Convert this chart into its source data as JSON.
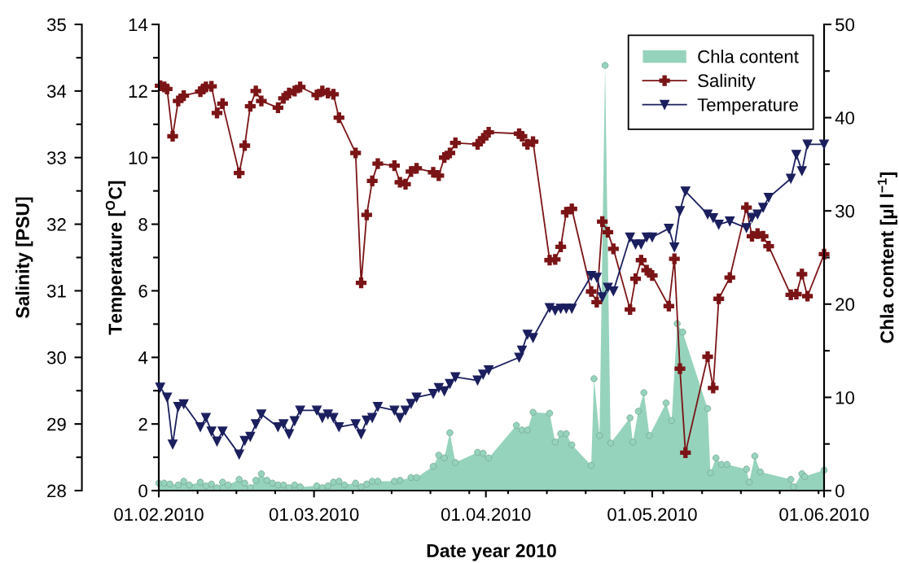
{
  "chart_data": {
    "type": "line",
    "xlabel": "Date year 2010",
    "ylabel": "Temperature [$^{O}$C]",
    "y2label": "Chla content [µl l$^{−1}$]",
    "y3label": "Salinity [PSU]",
    "xlim": [
      "2010-02-01",
      "2010-06-01"
    ],
    "xticks": [
      {
        "value": "2010-02-01",
        "label": "01.02.2010"
      },
      {
        "value": "2010-02-08",
        "label": null
      },
      {
        "value": "2010-02-15",
        "label": null
      },
      {
        "value": "2010-02-22",
        "label": null
      },
      {
        "value": "2010-03-01",
        "label": "01.03.2010"
      },
      {
        "value": "2010-03-08",
        "label": null
      },
      {
        "value": "2010-03-15",
        "label": null
      },
      {
        "value": "2010-03-22",
        "label": null
      },
      {
        "value": "2010-03-29",
        "label": null
      },
      {
        "value": "2010-04-01",
        "label": "01.04.2010"
      },
      {
        "value": "2010-04-05",
        "label": null
      },
      {
        "value": "2010-04-12",
        "label": null
      },
      {
        "value": "2010-04-19",
        "label": null
      },
      {
        "value": "2010-04-26",
        "label": null
      },
      {
        "value": "2010-05-01",
        "label": "01.05.2010"
      },
      {
        "value": "2010-05-03",
        "label": null
      },
      {
        "value": "2010-05-10",
        "label": null
      },
      {
        "value": "2010-05-17",
        "label": null
      },
      {
        "value": "2010-05-24",
        "label": null
      },
      {
        "value": "2010-05-31",
        "label": null
      },
      {
        "value": "2010-06-01",
        "label": "01.06.2010"
      }
    ],
    "ylim": [
      0,
      14
    ],
    "yticks": [
      0,
      {
        "value": 1,
        "label": null
      },
      2,
      {
        "value": 3,
        "label": null
      },
      4,
      {
        "value": 5,
        "label": null
      },
      6,
      {
        "value": 7,
        "label": null
      },
      8,
      {
        "value": 9,
        "label": null
      },
      10,
      {
        "value": 11,
        "label": null
      },
      12,
      {
        "value": 13,
        "label": null
      },
      14
    ],
    "y2lim": [
      0,
      50
    ],
    "y2ticks": [
      0,
      {
        "value": 5,
        "label": null
      },
      10,
      {
        "value": 15,
        "label": null
      },
      20,
      {
        "value": 25,
        "label": null
      },
      30,
      {
        "value": 35,
        "label": null
      },
      40,
      {
        "value": 45,
        "label": null
      },
      50
    ],
    "y3lim": [
      28,
      35
    ],
    "y3ticks": [
      28,
      {
        "value": 28.5,
        "label": null
      },
      29,
      {
        "value": 29.5,
        "label": null
      },
      30,
      {
        "value": 30.5,
        "label": null
      },
      31,
      {
        "value": 31.5,
        "label": null
      },
      32,
      {
        "value": 32.5,
        "label": null
      },
      33,
      {
        "value": 33.5,
        "label": null
      },
      34,
      {
        "value": 34.5,
        "label": null
      },
      35
    ],
    "legend": "top right",
    "series": [
      {
        "name": "Chla content",
        "type": "area",
        "axis": "y2",
        "color": "#96d3bc",
        "marker": "circle",
        "x": [
          "2010-02-01",
          "2010-02-02",
          "2010-02-03",
          "2010-02-04T12:00",
          "2010-02-05T12:00",
          "2010-02-06T12:00",
          "2010-02-08T12:00",
          "2010-02-09T12:00",
          "2010-02-10T12:00",
          "2010-02-11T12:00",
          "2010-02-12T12:00",
          "2010-02-13T12:00",
          "2010-02-15T12:00",
          "2010-02-16T12:00",
          "2010-02-17T12:00",
          "2010-02-18T12:00",
          "2010-02-19T12:00",
          "2010-02-20T12:00",
          "2010-02-21T12:00",
          "2010-02-22T12:00",
          "2010-02-23T12:00",
          "2010-02-24T12:00",
          "2010-02-25T12:00",
          "2010-02-26T12:00",
          "2010-03-01T12:00",
          "2010-03-02T12:00",
          "2010-03-03T12:00",
          "2010-03-04T12:00",
          "2010-03-05T12:00",
          "2010-03-06T12:00",
          "2010-03-08T12:00",
          "2010-03-09T12:00",
          "2010-03-10T12:00",
          "2010-03-11T12:00",
          "2010-03-12T12:00",
          "2010-03-15T12:00",
          "2010-03-16T12:00",
          "2010-03-18T12:00",
          "2010-03-19T12:00",
          "2010-03-22T12:00",
          "2010-03-23T12:00",
          "2010-03-24T12:00",
          "2010-03-25T12:00",
          "2010-03-26T12:00",
          "2010-03-30T12:00",
          "2010-03-31T12:00",
          "2010-04-01T12:00",
          "2010-04-06T12:00",
          "2010-04-07T12:00",
          "2010-04-08T12:00",
          "2010-04-09T12:00",
          "2010-04-12T12:00",
          "2010-04-13T12:00",
          "2010-04-14T12:00",
          "2010-04-15T12:00",
          "2010-04-16T12:00",
          "2010-04-20",
          "2010-04-20T12:00",
          "2010-04-21T12:00",
          "2010-04-22T12:00",
          "2010-04-23T12:00",
          "2010-04-27",
          "2010-04-27T12:00",
          "2010-04-28T12:00",
          "2010-04-29T12:00",
          "2010-04-30T12:00",
          "2010-05-03T12:00",
          "2010-05-04T12:00",
          "2010-05-05T12:00",
          "2010-05-06T12:00",
          "2010-05-11",
          "2010-05-11T12:00",
          "2010-05-12T12:00",
          "2010-05-13T12:00",
          "2010-05-14T12:00",
          "2010-05-18",
          "2010-05-18T12:00",
          "2010-05-19T12:00",
          "2010-05-20T12:00",
          "2010-05-26",
          "2010-05-26T12:00",
          "2010-05-28",
          "2010-05-28T12:00",
          "2010-06-01"
        ],
        "values": [
          0.8,
          0.8,
          0.7,
          0.6,
          1.0,
          0.6,
          0.9,
          0.5,
          0.7,
          0.3,
          0.9,
          0.6,
          1.2,
          0.8,
          0.3,
          1.1,
          1.8,
          1.1,
          0.8,
          0.6,
          0.6,
          0.3,
          0.6,
          0.4,
          0.5,
          0.3,
          0.5,
          0.9,
          1.0,
          0.6,
          0.8,
          0.4,
          0.7,
          1.0,
          1.0,
          1.0,
          1.1,
          1.4,
          1.4,
          2.6,
          3.8,
          3.5,
          6.2,
          3.0,
          4.1,
          4.0,
          3.5,
          7.0,
          6.5,
          6.5,
          8.4,
          8.3,
          5.2,
          6.1,
          6.1,
          4.9,
          2.7,
          12.0,
          5.9,
          45.6,
          5.1,
          7.8,
          5.2,
          8.5,
          10.5,
          5.9,
          9.4,
          7.5,
          17.9,
          17.0,
          8.8,
          1.9,
          3.5,
          2.8,
          2.8,
          2.3,
          0.9,
          3.7,
          2.0,
          1.2,
          0.4,
          1.8,
          1.5,
          2.2
        ]
      },
      {
        "name": "Salinity",
        "axis": "y3",
        "color": "#7b1416",
        "marker": "cross",
        "line_style": "solid",
        "x": [
          "2010-02-01T06:00",
          "2010-02-02",
          "2010-02-02T12:00",
          "2010-02-03T12:00",
          "2010-02-04T12:00",
          "2010-02-05T12:00",
          "2010-02-08T12:00",
          "2010-02-09",
          "2010-02-09T12:00",
          "2010-02-10T12:00",
          "2010-02-11T12:00",
          "2010-02-12T12:00",
          "2010-02-15T12:00",
          "2010-02-16T12:00",
          "2010-02-17T12:00",
          "2010-02-18T12:00",
          "2010-02-19T12:00",
          "2010-02-22T12:00",
          "2010-02-23T12:00",
          "2010-02-24T12:00",
          "2010-02-25T12:00",
          "2010-02-26T12:00",
          "2010-03-01T12:00",
          "2010-03-02T12:00",
          "2010-03-03T12:00",
          "2010-03-04T12:00",
          "2010-03-05T12:00",
          "2010-03-08T12:00",
          "2010-03-09T12:00",
          "2010-03-10T12:00",
          "2010-03-11T12:00",
          "2010-03-12T12:00",
          "2010-03-15T12:00",
          "2010-03-16T12:00",
          "2010-03-17T12:00",
          "2010-03-18T12:00",
          "2010-03-19T12:00",
          "2010-03-22T12:00",
          "2010-03-23T12:00",
          "2010-03-24T12:00",
          "2010-03-25T12:00",
          "2010-03-26T12:00",
          "2010-03-30T12:00",
          "2010-03-31T12:00",
          "2010-04-01T12:00",
          "2010-04-07",
          "2010-04-07T12:00",
          "2010-04-08T12:00",
          "2010-04-09T12:00",
          "2010-04-12T12:00",
          "2010-04-13T12:00",
          "2010-04-14T12:00",
          "2010-04-15T12:00",
          "2010-04-16T12:00",
          "2010-04-20",
          "2010-04-21",
          "2010-04-22",
          "2010-04-23",
          "2010-04-24",
          "2010-04-27",
          "2010-04-28",
          "2010-04-29",
          "2010-04-30",
          "2010-05-01",
          "2010-05-04",
          "2010-05-05",
          "2010-05-06",
          "2010-05-07",
          "2010-05-11",
          "2010-05-12",
          "2010-05-13",
          "2010-05-15",
          "2010-05-18",
          "2010-05-19",
          "2010-05-20",
          "2010-05-21",
          "2010-05-22",
          "2010-05-26",
          "2010-05-27",
          "2010-05-28",
          "2010-05-29",
          "2010-06-01"
        ],
        "values": [
          34.08,
          34.06,
          34.03,
          33.32,
          33.85,
          33.93,
          33.99,
          34.03,
          34.06,
          34.07,
          33.67,
          33.81,
          32.77,
          33.18,
          33.77,
          34.0,
          33.85,
          33.75,
          33.89,
          33.97,
          34.0,
          34.06,
          33.94,
          34.0,
          33.97,
          33.95,
          33.6,
          33.07,
          31.12,
          32.14,
          32.65,
          32.91,
          32.88,
          32.63,
          32.6,
          32.79,
          32.84,
          32.78,
          32.73,
          33.0,
          33.07,
          33.22,
          33.2,
          33.29,
          33.38,
          33.36,
          33.32,
          33.2,
          33.24,
          31.46,
          31.47,
          31.66,
          32.18,
          32.23,
          30.99,
          30.83,
          32.04,
          31.88,
          31.63,
          30.72,
          31.18,
          31.46,
          31.31,
          31.23,
          30.77,
          31.48,
          29.83,
          28.57,
          30.01,
          29.54,
          30.88,
          31.2,
          32.25,
          31.82,
          31.86,
          31.82,
          31.67,
          30.94,
          30.95,
          31.25,
          30.92,
          31.55
        ]
      },
      {
        "name": "Temperature",
        "axis": "y",
        "color": "#1b1f5e",
        "marker": "triangle",
        "line_style": "solid",
        "x": [
          "2010-02-01T06:00",
          "2010-02-02T12:00",
          "2010-02-03T12:00",
          "2010-02-04T12:00",
          "2010-02-05T12:00",
          "2010-02-08T12:00",
          "2010-02-09T12:00",
          "2010-02-10T12:00",
          "2010-02-11T12:00",
          "2010-02-12T12:00",
          "2010-02-15T12:00",
          "2010-02-16T12:00",
          "2010-02-17T12:00",
          "2010-02-18T12:00",
          "2010-02-19T12:00",
          "2010-02-22T12:00",
          "2010-02-23T12:00",
          "2010-02-24T12:00",
          "2010-02-25T12:00",
          "2010-02-26T12:00",
          "2010-03-01T12:00",
          "2010-03-02T12:00",
          "2010-03-03T12:00",
          "2010-03-04T12:00",
          "2010-03-05T12:00",
          "2010-03-08T12:00",
          "2010-03-09T12:00",
          "2010-03-10T12:00",
          "2010-03-11T12:00",
          "2010-03-12T12:00",
          "2010-03-15T12:00",
          "2010-03-16T12:00",
          "2010-03-17T12:00",
          "2010-03-18T12:00",
          "2010-03-19T12:00",
          "2010-03-22T12:00",
          "2010-03-23T12:00",
          "2010-03-24T12:00",
          "2010-03-25T12:00",
          "2010-03-26T12:00",
          "2010-03-30T12:00",
          "2010-03-31T12:00",
          "2010-04-01T12:00",
          "2010-04-07",
          "2010-04-07T12:00",
          "2010-04-08T12:00",
          "2010-04-09T12:00",
          "2010-04-12T12:00",
          "2010-04-13T12:00",
          "2010-04-14T12:00",
          "2010-04-15T12:00",
          "2010-04-16T12:00",
          "2010-04-20",
          "2010-04-21",
          "2010-04-22",
          "2010-04-23",
          "2010-04-24",
          "2010-04-27",
          "2010-04-28",
          "2010-04-29",
          "2010-04-30",
          "2010-05-01",
          "2010-05-04",
          "2010-05-05",
          "2010-05-06",
          "2010-05-07",
          "2010-05-11",
          "2010-05-12",
          "2010-05-13",
          "2010-05-15",
          "2010-05-18",
          "2010-05-19",
          "2010-05-20",
          "2010-05-21",
          "2010-05-22",
          "2010-05-26",
          "2010-05-27",
          "2010-05-28",
          "2010-05-29",
          "2010-06-01"
        ],
        "values": [
          3.1,
          2.8,
          1.39,
          2.52,
          2.6,
          1.91,
          2.19,
          1.78,
          1.48,
          1.78,
          1.09,
          1.5,
          1.62,
          2.0,
          2.29,
          1.91,
          2.0,
          1.7,
          2.09,
          2.41,
          2.41,
          2.19,
          2.29,
          2.19,
          1.91,
          2.0,
          1.7,
          2.11,
          2.19,
          2.52,
          2.41,
          2.19,
          2.41,
          2.61,
          2.8,
          2.91,
          3.09,
          2.99,
          3.21,
          3.41,
          3.31,
          3.49,
          3.62,
          4.0,
          4.21,
          4.69,
          4.59,
          5.49,
          5.41,
          5.47,
          5.47,
          5.47,
          6.45,
          6.4,
          5.81,
          6.1,
          5.99,
          7.61,
          7.4,
          7.4,
          7.61,
          7.61,
          7.87,
          7.31,
          8.4,
          8.99,
          8.3,
          8.19,
          7.99,
          8.09,
          7.89,
          8.2,
          8.3,
          8.5,
          8.8,
          9.37,
          10.09,
          9.6,
          10.4,
          10.4
        ]
      }
    ]
  }
}
